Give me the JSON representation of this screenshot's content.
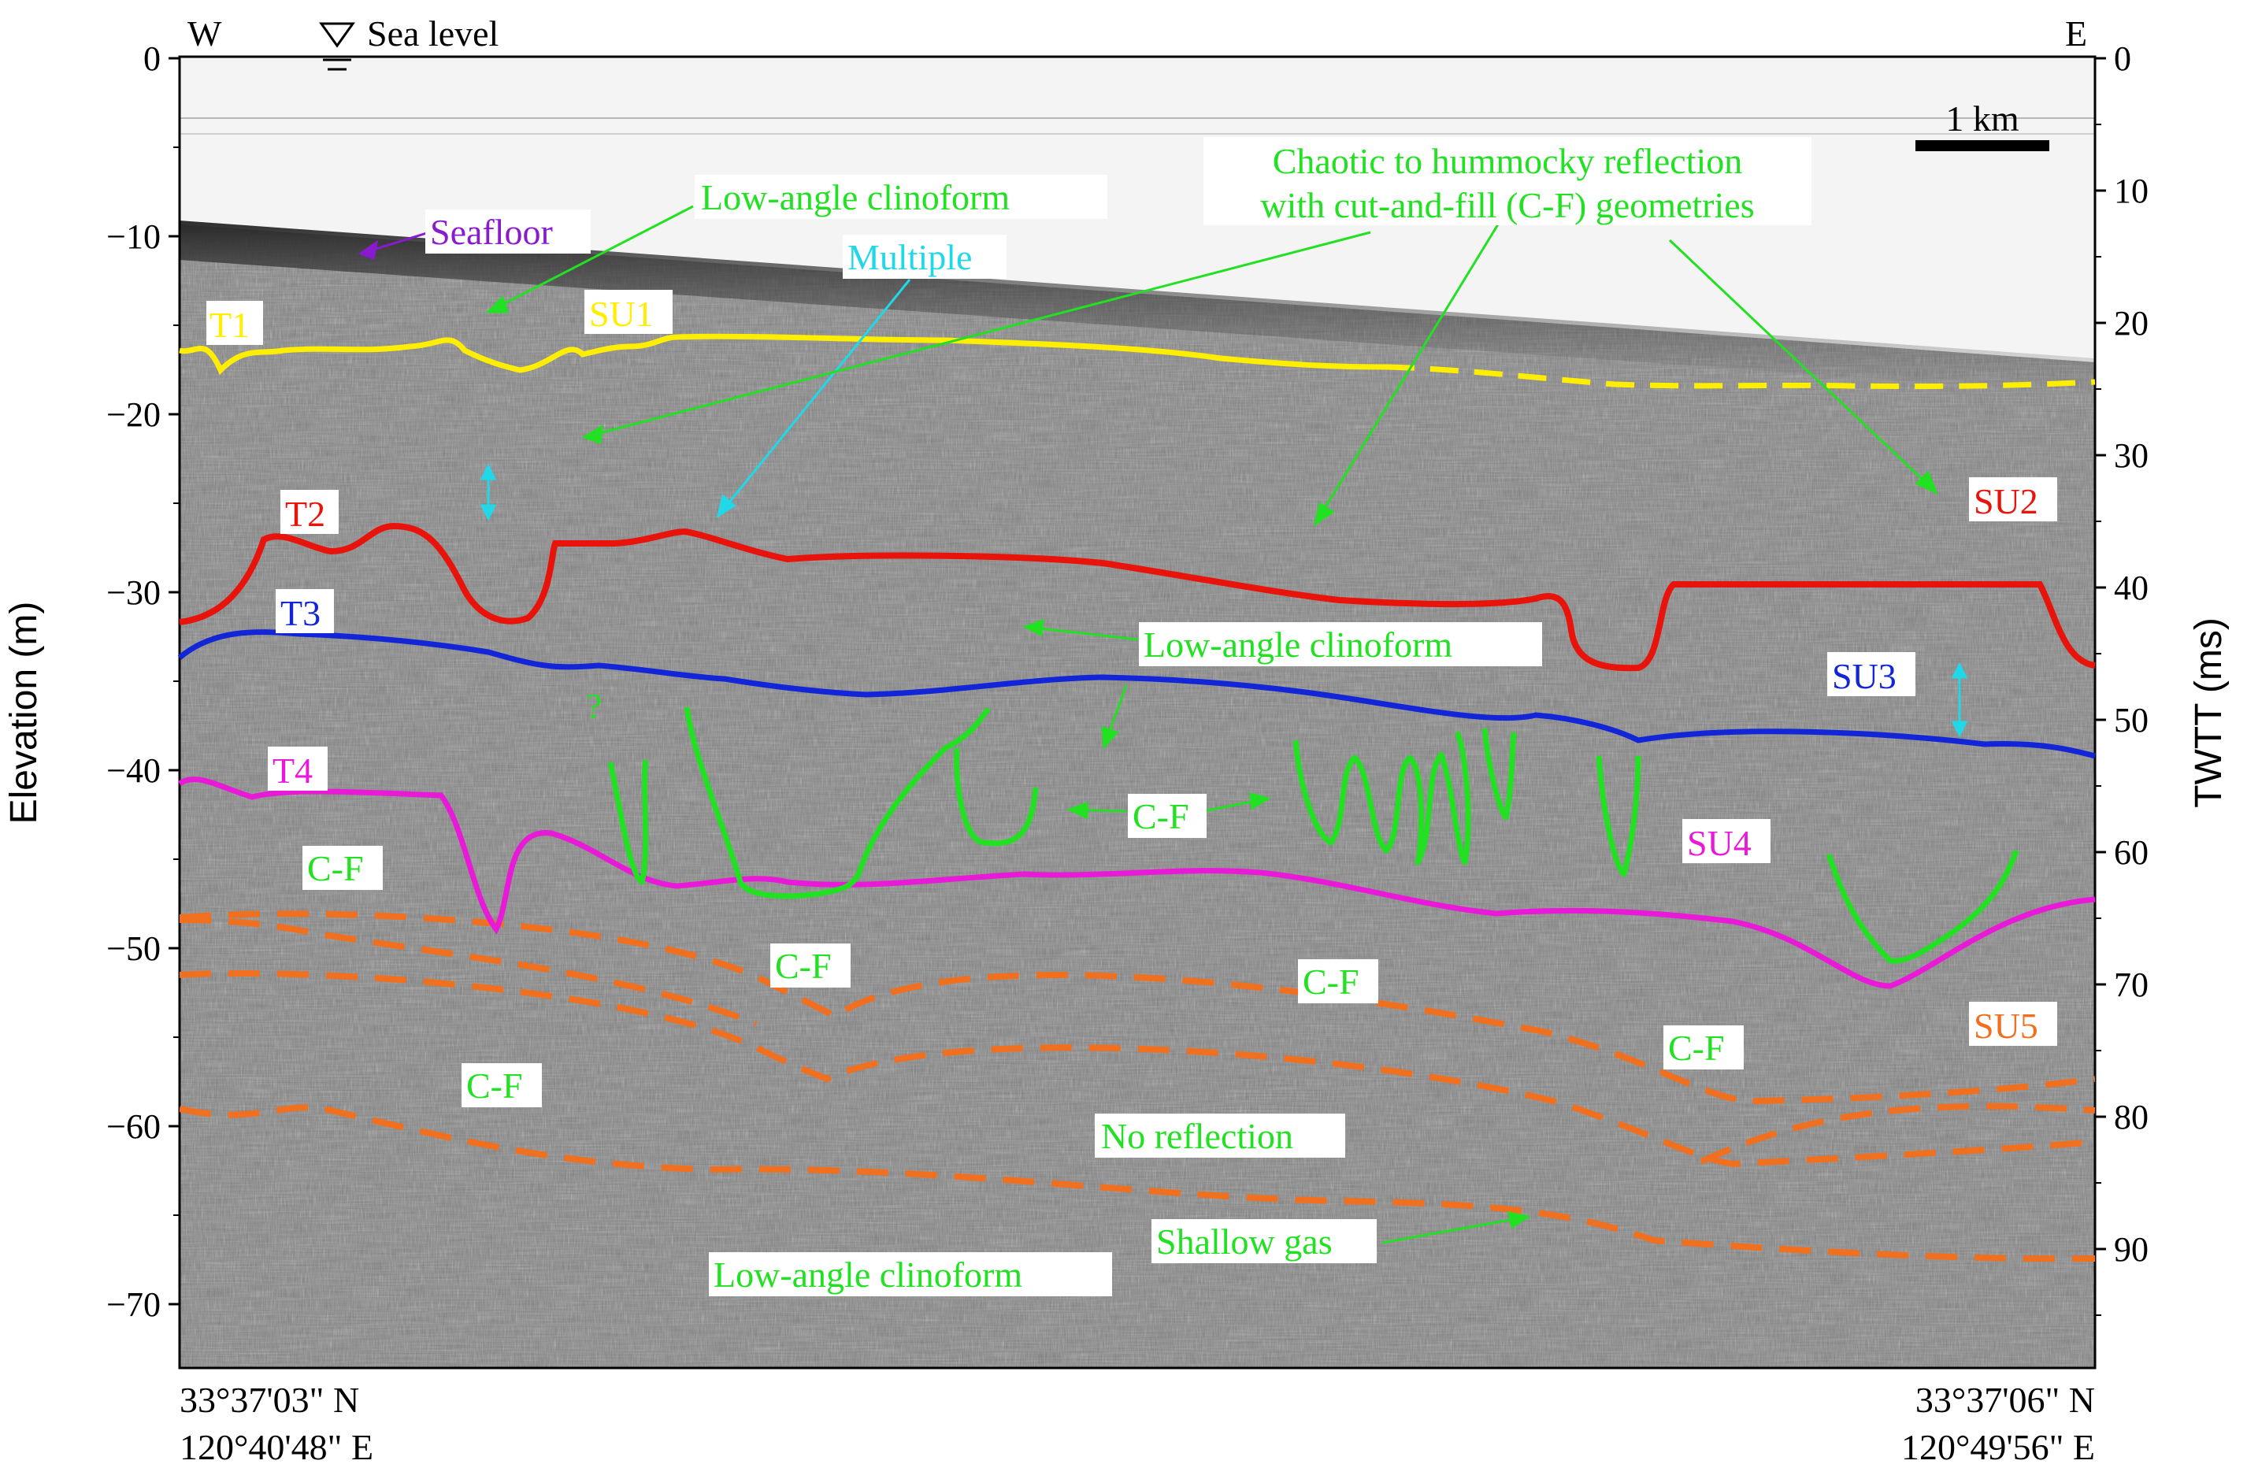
{
  "header": {
    "west": "W",
    "east": "E",
    "sea_level": "Sea level"
  },
  "axes": {
    "left_title": "Elevation (m)",
    "right_title": "TWTT (ms)",
    "left_ticks": [
      "0",
      "−10",
      "−20",
      "−30",
      "−40",
      "−50",
      "−60",
      "−70"
    ],
    "right_ticks": [
      "0",
      "10",
      "20",
      "30",
      "40",
      "50",
      "60",
      "70",
      "80",
      "90"
    ]
  },
  "scale_bar": {
    "label": "1 km"
  },
  "coords": {
    "left_lat": "33°37'03\" N",
    "left_lon": "120°40'48\" E",
    "right_lat": "33°37'06\" N",
    "right_lon": "120°49'56\" E"
  },
  "colors": {
    "T1": "#ffee00",
    "T2": "#e8140c",
    "T3": "#1226d8",
    "T4": "#e81ad8",
    "cf": "#22e022",
    "su5": "#f07020",
    "multiple": "#20d8e8",
    "seafloor": "#8a1ad0"
  },
  "horizons": {
    "t1": "T1",
    "t2": "T2",
    "t3": "T3",
    "t4": "T4"
  },
  "units": {
    "su1": "SU1",
    "su2": "SU2",
    "su3": "SU3",
    "su4": "SU4",
    "su5": "SU5"
  },
  "annotations": {
    "seafloor": "Seafloor",
    "multiple": "Multiple",
    "clinoform_top": "Low-angle clinoform",
    "chaotic_1": "Chaotic to hummocky reflection",
    "chaotic_2": "with cut-and-fill (C-F) geometries",
    "clinoform_mid": "Low-angle clinoform",
    "clinoform_bottom": "Low-angle clinoform",
    "no_reflection": "No reflection",
    "shallow_gas": "Shallow gas",
    "question": "?",
    "cf_mid": "C-F",
    "cf_su4": "C-F",
    "cf_1": "C-F",
    "cf_2": "C-F",
    "cf_3": "C-F",
    "cf_4": "C-F"
  }
}
